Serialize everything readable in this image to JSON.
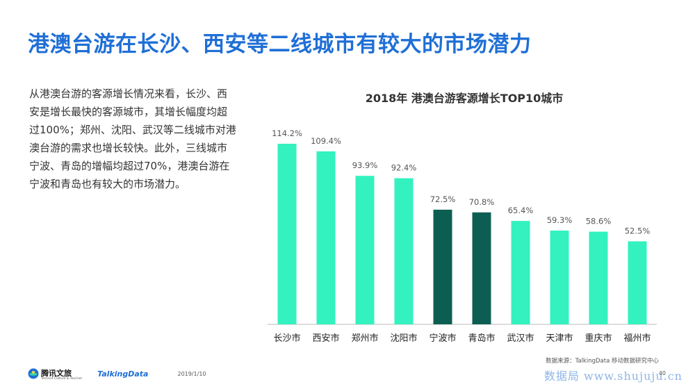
{
  "header": {
    "title": "港澳台游在长沙、西安等二线城市有较大的市场潜力"
  },
  "description": {
    "lines": [
      "从港澳台游的客源增长情况来看，长沙、西",
      "安是增长最快的客源城市，其增长幅度均超",
      "过100%；郑州、沈阳、武汉等二线城市对港",
      "澳台游的需求也增长较快。此外，三线城市",
      "宁波、青岛的增幅均超过70%，港澳台游在",
      "宁波和青岛也有较大的市场潜力。"
    ]
  },
  "chart_data": {
    "type": "bar",
    "title": "2018年 港澳台游客源增长TOP10城市",
    "categories": [
      "长沙市",
      "西安市",
      "郑州市",
      "沈阳市",
      "宁波市",
      "青岛市",
      "武汉市",
      "天津市",
      "重庆市",
      "福州市"
    ],
    "values": [
      114.2,
      109.4,
      93.9,
      92.4,
      72.5,
      70.8,
      65.4,
      59.3,
      58.6,
      52.5
    ],
    "labels": [
      "114.2%",
      "109.4%",
      "93.9%",
      "92.4%",
      "72.5%",
      "70.8%",
      "65.4%",
      "59.3%",
      "58.6%",
      "52.5%"
    ],
    "highlight": [
      "宁波市",
      "青岛市"
    ],
    "ylim": [
      0,
      114.2
    ],
    "unit": "%",
    "colors": {
      "default": "#33f2bf",
      "highlight": "#0d5e52",
      "axis": "#bbbbbb"
    }
  },
  "footer": {
    "source": "数据来源：TalkingData 移动数据研究中心",
    "logo_tencent": "腾讯文旅",
    "logo_tencent_sub": "Tencent Culture & Tourism",
    "logo_talkingdata": "TalkingData",
    "date": "2019/1/10",
    "page": "40",
    "watermark": "数据局 www.shujuju.cn"
  }
}
